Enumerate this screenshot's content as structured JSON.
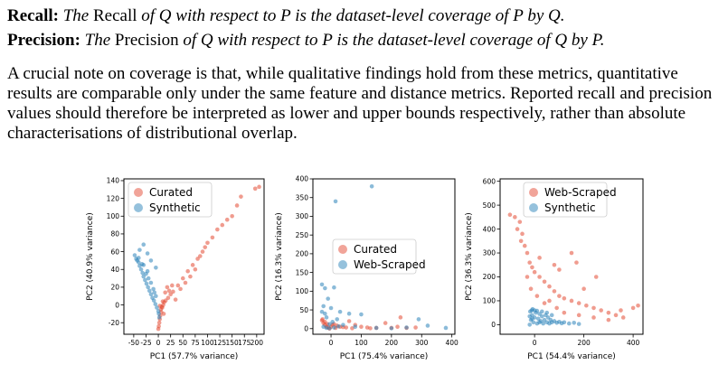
{
  "definitions": [
    {
      "term": "Recall:",
      "segments": [
        {
          "t": "The ",
          "i": true
        },
        {
          "t": "Recall",
          "i": false
        },
        {
          "t": " of Q with respect to P is the dataset-level coverage of P by Q.",
          "i": true
        }
      ]
    },
    {
      "term": "Precision:",
      "segments": [
        {
          "t": "The ",
          "i": true
        },
        {
          "t": "Precision",
          "i": false
        },
        {
          "t": " of Q with respect to P is the dataset-level coverage of Q by P.",
          "i": true
        }
      ]
    }
  ],
  "paragraph": [
    "A crucial note on coverage is that, while qualitative findings hold from these metrics, quantitative",
    "results are comparable only under the same feature and distance metrics. Reported recall and precision",
    "values should therefore be interpreted as lower and upper bounds respectively, rather than absolute",
    "characterisations of distributional overlap."
  ],
  "colors": {
    "red": "#e34a33",
    "blue": "#2b83ba"
  },
  "chart_data": [
    {
      "type": "scatter",
      "xlabel": "PC1  (57.7% variance)",
      "ylabel": "PC2  (40.9% variance)",
      "xlim": [
        -70,
        215
      ],
      "ylim": [
        -33,
        142
      ],
      "xticks": [
        -50,
        -25,
        0,
        25,
        50,
        75,
        100,
        125,
        150,
        175,
        200
      ],
      "yticks": [
        -20,
        0,
        20,
        40,
        60,
        80,
        100,
        120,
        140
      ],
      "legend": "top-left",
      "series": [
        {
          "name": "Curated",
          "color": "#e34a33",
          "points": [
            [
              205,
              133
            ],
            [
              197,
              131
            ],
            [
              168,
              122
            ],
            [
              160,
              112
            ],
            [
              150,
              100
            ],
            [
              120,
              85
            ],
            [
              110,
              76
            ],
            [
              100,
              70
            ],
            [
              90,
              60
            ],
            [
              80,
              52
            ],
            [
              70,
              45
            ],
            [
              60,
              38
            ],
            [
              50,
              30
            ],
            [
              40,
              22
            ],
            [
              30,
              15
            ],
            [
              25,
              12
            ],
            [
              20,
              8
            ],
            [
              15,
              5
            ],
            [
              12,
              3
            ],
            [
              10,
              0
            ],
            [
              8,
              -3
            ],
            [
              6,
              -8
            ],
            [
              4,
              -12
            ],
            [
              3,
              -16
            ],
            [
              2,
              -20
            ],
            [
              1,
              -24
            ],
            [
              0,
              -27
            ],
            [
              18,
              20
            ],
            [
              22,
              16
            ],
            [
              28,
              22
            ],
            [
              35,
              6
            ],
            [
              14,
              14
            ],
            [
              55,
              25
            ],
            [
              45,
              18
            ],
            [
              65,
              32
            ],
            [
              75,
              40
            ],
            [
              85,
              55
            ],
            [
              95,
              65
            ],
            [
              140,
              96
            ],
            [
              130,
              90
            ],
            [
              5,
              -5
            ],
            [
              7,
              -2
            ],
            [
              9,
              4
            ],
            [
              11,
              -10
            ],
            [
              3,
              -1
            ]
          ]
        },
        {
          "name": "Synthetic",
          "color": "#2b83ba",
          "points": [
            [
              -45,
              52
            ],
            [
              -43,
              50
            ],
            [
              -40,
              48
            ],
            [
              -38,
              44
            ],
            [
              -35,
              40
            ],
            [
              -32,
              36
            ],
            [
              -30,
              32
            ],
            [
              -27,
              28
            ],
            [
              -24,
              24
            ],
            [
              -21,
              20
            ],
            [
              -18,
              16
            ],
            [
              -15,
              12
            ],
            [
              -12,
              8
            ],
            [
              -9,
              5
            ],
            [
              -6,
              1
            ],
            [
              -3,
              -3
            ],
            [
              0,
              -7
            ],
            [
              1,
              -10
            ],
            [
              2,
              -14
            ],
            [
              -48,
              56
            ],
            [
              -40,
              53
            ],
            [
              -33,
              46
            ],
            [
              -20,
              30
            ],
            [
              -10,
              18
            ],
            [
              -25,
              35
            ],
            [
              -15,
              25
            ],
            [
              -5,
              10
            ],
            [
              -30,
              45
            ],
            [
              -22,
              38
            ],
            [
              -8,
              14
            ],
            [
              -30,
              68
            ],
            [
              -22,
              58
            ],
            [
              -15,
              50
            ],
            [
              -5,
              42
            ],
            [
              -38,
              62
            ]
          ]
        }
      ]
    },
    {
      "type": "scatter",
      "xlabel": "PC1  (75.4% variance)",
      "ylabel": "PC2  (16.3% variance)",
      "xlim": [
        -60,
        410
      ],
      "ylim": [
        -15,
        400
      ],
      "xticks": [
        0,
        100,
        200,
        300,
        400
      ],
      "yticks": [
        0,
        50,
        100,
        150,
        200,
        250,
        300,
        350,
        400
      ],
      "legend": "center-right",
      "series": [
        {
          "name": "Curated",
          "color": "#e34a33",
          "points": [
            [
              -30,
              22
            ],
            [
              -25,
              15
            ],
            [
              -20,
              10
            ],
            [
              -15,
              5
            ],
            [
              -10,
              3
            ],
            [
              -5,
              0
            ],
            [
              0,
              5
            ],
            [
              5,
              10
            ],
            [
              10,
              12
            ],
            [
              20,
              8
            ],
            [
              30,
              5
            ],
            [
              40,
              4
            ],
            [
              50,
              3
            ],
            [
              60,
              20
            ],
            [
              80,
              10
            ],
            [
              100,
              5
            ],
            [
              120,
              3
            ],
            [
              150,
              2
            ],
            [
              180,
              15
            ],
            [
              200,
              2
            ],
            [
              220,
              5
            ],
            [
              230,
              30
            ],
            [
              250,
              2
            ],
            [
              280,
              3
            ],
            [
              -28,
              25
            ],
            [
              -20,
              18
            ],
            [
              -12,
              12
            ],
            [
              15,
              2
            ],
            [
              70,
              1
            ],
            [
              130,
              1
            ]
          ]
        },
        {
          "name": "Web-Scraped",
          "color": "#2b83ba",
          "points": [
            [
              135,
              380
            ],
            [
              15,
              340
            ],
            [
              -30,
              118
            ],
            [
              -20,
              108
            ],
            [
              10,
              110
            ],
            [
              -25,
              60
            ],
            [
              0,
              55
            ],
            [
              30,
              45
            ],
            [
              60,
              40
            ],
            [
              100,
              38
            ],
            [
              -15,
              30
            ],
            [
              20,
              25
            ],
            [
              5,
              18
            ],
            [
              -5,
              12
            ],
            [
              40,
              10
            ],
            [
              80,
              5
            ],
            [
              150,
              2
            ],
            [
              200,
              1
            ],
            [
              250,
              3
            ],
            [
              290,
              25
            ],
            [
              320,
              8
            ],
            [
              380,
              2
            ],
            [
              -10,
              80
            ],
            [
              -30,
              45
            ],
            [
              -20,
              40
            ],
            [
              -25,
              5
            ],
            [
              -15,
              2
            ],
            [
              -5,
              1
            ],
            [
              10,
              3
            ],
            [
              25,
              6
            ]
          ]
        }
      ]
    },
    {
      "type": "scatter",
      "xlabel": "PC1  (54.4% variance)",
      "ylabel": "PC2  (36.3% variance)",
      "xlim": [
        -140,
        440
      ],
      "ylim": [
        -40,
        610
      ],
      "xticks": [
        0,
        200,
        400
      ],
      "yticks": [
        0,
        100,
        200,
        300,
        400,
        500,
        600
      ],
      "legend": "top-right",
      "series": [
        {
          "name": "Web-Scraped",
          "color": "#e34a33",
          "points": [
            [
              -100,
              460
            ],
            [
              -80,
              450
            ],
            [
              -60,
              430
            ],
            [
              -50,
              380
            ],
            [
              -40,
              330
            ],
            [
              -30,
              300
            ],
            [
              -20,
              260
            ],
            [
              -10,
              240
            ],
            [
              0,
              220
            ],
            [
              20,
              200
            ],
            [
              40,
              180
            ],
            [
              60,
              160
            ],
            [
              80,
              140
            ],
            [
              100,
              120
            ],
            [
              120,
              110
            ],
            [
              150,
              100
            ],
            [
              180,
              90
            ],
            [
              210,
              80
            ],
            [
              240,
              70
            ],
            [
              270,
              60
            ],
            [
              300,
              50
            ],
            [
              330,
              40
            ],
            [
              360,
              30
            ],
            [
              400,
              70
            ],
            [
              420,
              80
            ],
            [
              -70,
              400
            ],
            [
              -55,
              350
            ],
            [
              20,
              280
            ],
            [
              80,
              250
            ],
            [
              100,
              230
            ],
            [
              150,
              300
            ],
            [
              170,
              260
            ],
            [
              200,
              150
            ],
            [
              250,
              200
            ],
            [
              60,
              100
            ],
            [
              120,
              50
            ],
            [
              180,
              40
            ],
            [
              240,
              30
            ],
            [
              300,
              20
            ],
            [
              350,
              60
            ],
            [
              -30,
              200
            ],
            [
              -15,
              150
            ],
            [
              10,
              120
            ],
            [
              40,
              90
            ],
            [
              90,
              70
            ]
          ]
        },
        {
          "name": "Synthetic",
          "color": "#2b83ba",
          "points": [
            [
              -20,
              0
            ],
            [
              -15,
              20
            ],
            [
              -10,
              40
            ],
            [
              -5,
              10
            ],
            [
              0,
              30
            ],
            [
              5,
              50
            ],
            [
              10,
              5
            ],
            [
              15,
              25
            ],
            [
              20,
              45
            ],
            [
              25,
              15
            ],
            [
              30,
              35
            ],
            [
              35,
              5
            ],
            [
              40,
              20
            ],
            [
              45,
              40
            ],
            [
              50,
              10
            ],
            [
              55,
              30
            ],
            [
              60,
              5
            ],
            [
              65,
              20
            ],
            [
              70,
              10
            ],
            [
              80,
              15
            ],
            [
              90,
              8
            ],
            [
              100,
              12
            ],
            [
              110,
              6
            ],
            [
              120,
              10
            ],
            [
              -18,
              55
            ],
            [
              -12,
              60
            ],
            [
              -8,
              65
            ],
            [
              0,
              60
            ],
            [
              10,
              58
            ],
            [
              -20,
              35
            ],
            [
              -10,
              25
            ],
            [
              20,
              10
            ],
            [
              30,
              55
            ],
            [
              50,
              50
            ],
            [
              70,
              40
            ],
            [
              140,
              5
            ],
            [
              160,
              8
            ],
            [
              180,
              3
            ]
          ]
        }
      ]
    }
  ]
}
